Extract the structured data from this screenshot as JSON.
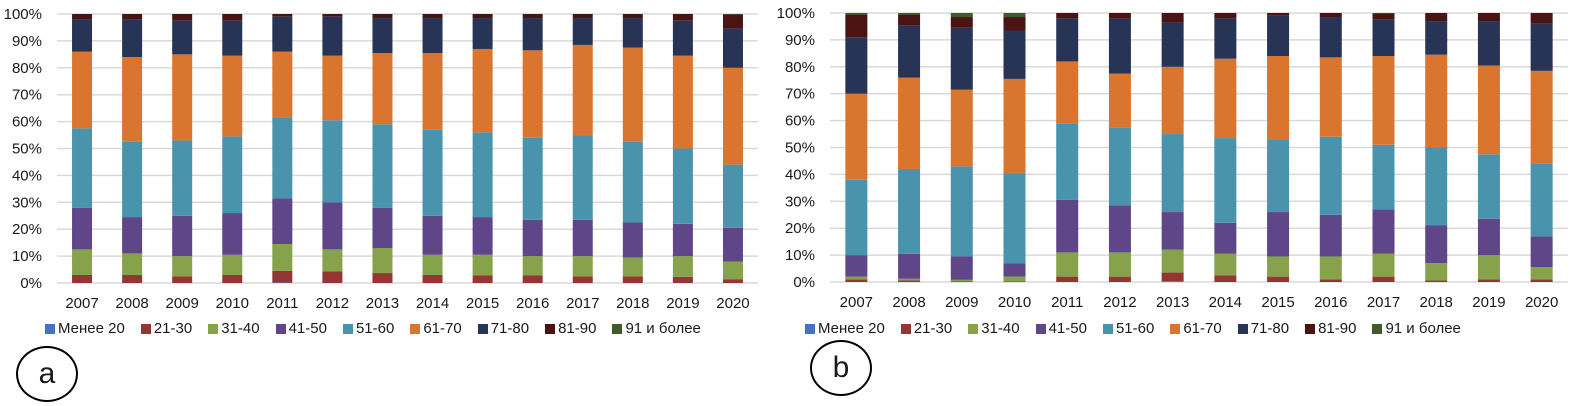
{
  "legend_labels": [
    "Менее 20",
    "21-30",
    "31-40",
    "41-50",
    "51-60",
    "61-70",
    "71-80",
    "81-90",
    "91 и более"
  ],
  "colors": [
    "#4472c4",
    "#943634",
    "#86a24a",
    "#5e4688",
    "#4a93ac",
    "#d9752e",
    "#283456",
    "#4b1414",
    "#3f5b2c"
  ],
  "chart_data": [
    {
      "panel": "a",
      "type": "bar",
      "stacked": "percent",
      "title": "",
      "xlabel": "",
      "ylabel": "",
      "ylim": [
        0,
        100
      ],
      "yticks": [
        "0%",
        "10%",
        "20%",
        "30%",
        "40%",
        "50%",
        "60%",
        "70%",
        "80%",
        "90%",
        "100%"
      ],
      "grid": true,
      "legend_position": "bottom",
      "categories": [
        "2007",
        "2008",
        "2009",
        "2010",
        "2011",
        "2012",
        "2013",
        "2014",
        "2015",
        "2016",
        "2017",
        "2018",
        "2019",
        "2020"
      ],
      "series": [
        {
          "name": "Менее 20",
          "values": [
            0,
            0,
            0,
            0,
            0.2,
            0,
            0,
            0,
            0,
            0,
            0,
            0,
            0,
            0
          ]
        },
        {
          "name": "21-30",
          "values": [
            3,
            3,
            2.5,
            3,
            4.3,
            4.3,
            3.7,
            3,
            2.8,
            2.8,
            2.5,
            2.5,
            2.3,
            1.3
          ]
        },
        {
          "name": "31-40",
          "values": [
            9.5,
            8,
            7.5,
            7.5,
            10,
            8.2,
            9.3,
            7.5,
            7.7,
            7.2,
            7.5,
            7,
            7.7,
            6.7
          ]
        },
        {
          "name": "41-50",
          "values": [
            15.5,
            13.5,
            15,
            15.5,
            17,
            17.5,
            15,
            14.5,
            14,
            13.5,
            13.5,
            13,
            12,
            12.5
          ]
        },
        {
          "name": "51-60",
          "values": [
            29.5,
            28,
            28,
            28.5,
            30,
            30.5,
            31,
            32,
            31.5,
            30.5,
            31.5,
            30,
            28,
            23.5
          ]
        },
        {
          "name": "61-70",
          "values": [
            28.5,
            31.5,
            32,
            30,
            24.5,
            24,
            26.5,
            28.5,
            31,
            32.5,
            33.5,
            35,
            34.5,
            36
          ]
        },
        {
          "name": "71-80",
          "values": [
            12,
            14,
            12.5,
            13,
            13,
            14.5,
            13,
            13,
            11.5,
            12,
            10,
            11,
            13,
            14.5
          ]
        },
        {
          "name": "81-90",
          "values": [
            2,
            2,
            2.5,
            2.5,
            1,
            1,
            1.5,
            1.5,
            1.5,
            1.5,
            1.5,
            1.5,
            2.5,
            5.3
          ]
        },
        {
          "name": "91 и более",
          "values": [
            0,
            0,
            0,
            0,
            0,
            0,
            0,
            0,
            0,
            0,
            0,
            0,
            0,
            0.2
          ]
        }
      ],
      "label": "a"
    },
    {
      "panel": "b",
      "type": "bar",
      "stacked": "percent",
      "title": "",
      "xlabel": "",
      "ylabel": "",
      "ylim": [
        0,
        100
      ],
      "yticks": [
        "0%",
        "10%",
        "20%",
        "30%",
        "40%",
        "50%",
        "60%",
        "70%",
        "80%",
        "90%",
        "100%"
      ],
      "grid": true,
      "legend_position": "bottom",
      "categories": [
        "2007",
        "2008",
        "2009",
        "2010",
        "2011",
        "2012",
        "2013",
        "2014",
        "2015",
        "2016",
        "2017",
        "2018",
        "2019",
        "2020"
      ],
      "series": [
        {
          "name": "Менее 20",
          "values": [
            0,
            0,
            0,
            0,
            0,
            0,
            0.3,
            0,
            0,
            0,
            0,
            0,
            0,
            0
          ]
        },
        {
          "name": "21-30",
          "values": [
            1,
            0.6,
            0.3,
            0.2,
            2,
            2,
            3.2,
            2.5,
            2,
            1,
            2,
            0.6,
            1,
            1
          ]
        },
        {
          "name": "31-40",
          "values": [
            1,
            0.6,
            0.5,
            1.8,
            9,
            9,
            8.5,
            8,
            7.5,
            8.5,
            8.5,
            6.4,
            9,
            4.5
          ]
        },
        {
          "name": "41-50",
          "values": [
            8,
            9.3,
            8.7,
            5,
            19.5,
            17.5,
            14,
            11.5,
            16.5,
            15.5,
            16.5,
            14,
            13.5,
            11.5
          ]
        },
        {
          "name": "51-60",
          "values": [
            28,
            31.5,
            33.5,
            33.5,
            28.5,
            29,
            29,
            31.5,
            27,
            29,
            24,
            29,
            24,
            27
          ]
        },
        {
          "name": "61-70",
          "values": [
            32,
            34,
            28.5,
            35,
            23,
            20,
            25,
            29.5,
            31,
            29.5,
            33,
            34.5,
            33,
            34.5
          ]
        },
        {
          "name": "71-80",
          "values": [
            21,
            19.5,
            23,
            18,
            16,
            20.5,
            16.5,
            15,
            15,
            15,
            13.5,
            12.5,
            16.5,
            17.5
          ]
        },
        {
          "name": "81-90",
          "values": [
            8.5,
            4,
            4,
            5,
            2,
            2,
            3.5,
            2,
            1,
            1.5,
            2.3,
            3,
            3,
            4
          ]
        },
        {
          "name": "91 и более",
          "values": [
            0.5,
            0.5,
            1.5,
            1.5,
            0,
            0,
            0,
            0,
            0,
            0,
            0.2,
            0,
            0,
            0
          ]
        }
      ],
      "label": "b"
    }
  ]
}
